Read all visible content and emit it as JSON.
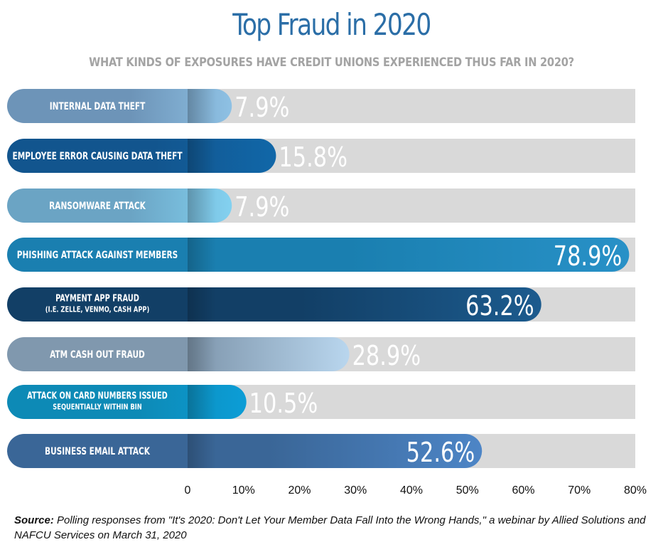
{
  "title": "Top Fraud in 2020",
  "subtitle": "WHAT KINDS OF EXPOSURES HAVE CREDIT UNIONS EXPERIENCED THUS FAR IN 2020?",
  "source": {
    "label": "Source:",
    "text": " Polling responses from \"It's 2020: Don't Let Your Member Data Fall Into the Wrong Hands,\" a webinar by Allied Solutions and NAFCU Services on March 31, 2020"
  },
  "chart_data": {
    "type": "bar",
    "orientation": "horizontal",
    "categories": [
      "INTERNAL DATA THEFT",
      "EMPLOYEE ERROR CAUSING DATA THEFT",
      "RANSOMWARE ATTACK",
      "PHISHING ATTACK AGAINST MEMBERS",
      "PAYMENT APP FRAUD\n(I.E. ZELLE, VENMO, CASH APP)",
      "ATM CASH OUT FRAUD",
      "ATTACK ON CARD NUMBERS ISSUED\nSEQUENTIALLY WITHIN BIN",
      "BUSINESS EMAIL ATTACK"
    ],
    "values": [
      7.9,
      15.8,
      7.9,
      78.9,
      63.2,
      28.9,
      10.5,
      52.6
    ],
    "data_labels": [
      "7.9%",
      "15.8%",
      "7.9%",
      "78.9%",
      "63.2%",
      "28.9%",
      "10.5%",
      "52.6%"
    ],
    "xlim": [
      0,
      80
    ],
    "x_ticks": [
      "0",
      "10%",
      "20%",
      "30%",
      "40%",
      "50%",
      "60%",
      "70%",
      "80%"
    ],
    "grid": false,
    "colors": {
      "track": "#d9d9d9",
      "bars": [
        "#6d94b8",
        "#12558e",
        "#6ba4c4",
        "#1a7fb0",
        "#123f66",
        "#8098ae",
        "#0d8ab6",
        "#3a6697"
      ],
      "bar_tips": [
        "#8ec1e4",
        "#1167a8",
        "#83d1f0",
        "#2891c7",
        "#1c5b8e",
        "#b9d6ee",
        "#0c9dd6",
        "#4d85c6"
      ]
    }
  }
}
